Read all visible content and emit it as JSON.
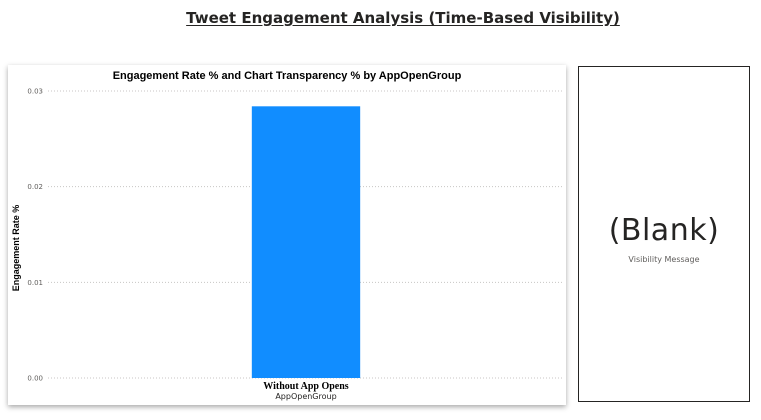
{
  "report": {
    "title": "Tweet Engagement Analysis (Time-Based Visibility)"
  },
  "chart_data": {
    "type": "bar",
    "title": "Engagement Rate % and Chart Transparency % by AppOpenGroup",
    "xlabel": "AppOpenGroup",
    "ylabel": "Engagement Rate %",
    "categories": [
      "Without App Opens"
    ],
    "values": [
      0.0284
    ],
    "ylim": [
      0,
      0.03
    ],
    "yticks": [
      "0.00",
      "0.01",
      "0.02",
      "0.03"
    ],
    "ytick_values": [
      0,
      0.01,
      0.02,
      0.03
    ],
    "grid": true,
    "bar_color": "#118DFF"
  },
  "card": {
    "value": "(Blank)",
    "label": "Visibility Message"
  }
}
